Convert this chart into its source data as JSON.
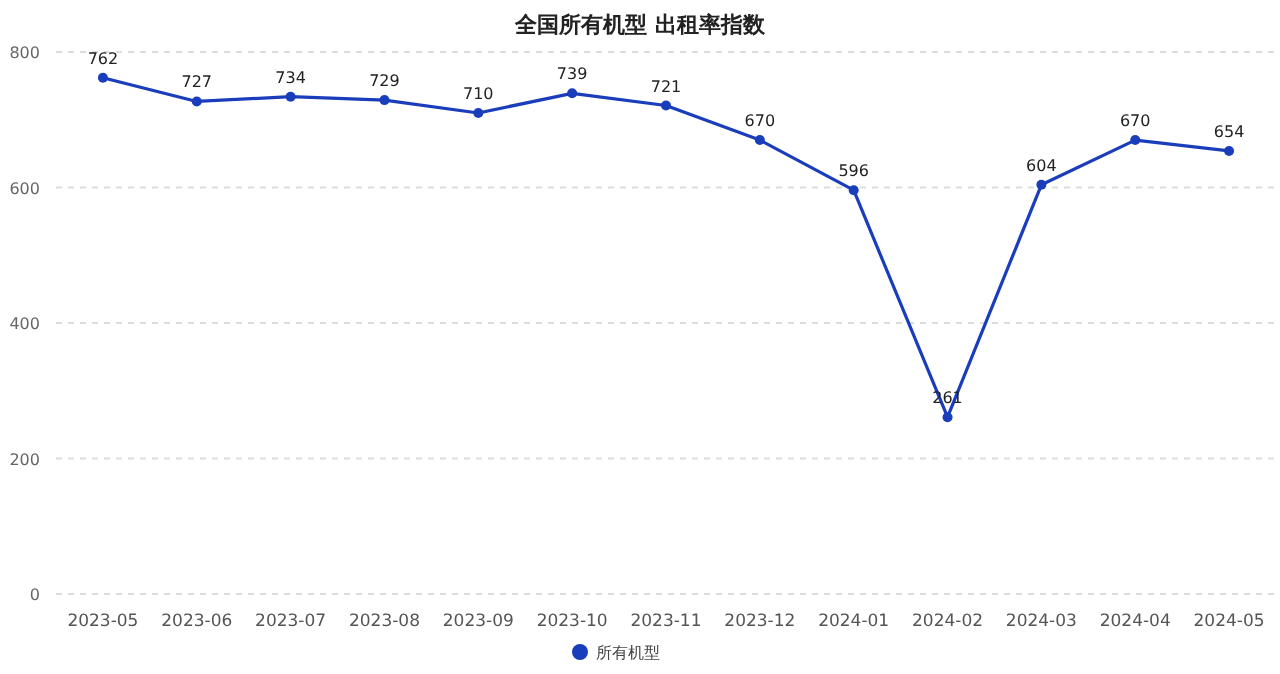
{
  "chart_data": {
    "type": "line",
    "title": "全国所有机型 出租率指数",
    "categories": [
      "2023-05",
      "2023-06",
      "2023-07",
      "2023-08",
      "2023-09",
      "2023-10",
      "2023-11",
      "2023-12",
      "2024-01",
      "2024-02",
      "2024-03",
      "2024-04",
      "2024-05"
    ],
    "series": [
      {
        "name": "所有机型",
        "color": "#1a3dbb",
        "values": [
          762,
          727,
          734,
          729,
          710,
          739,
          721,
          670,
          596,
          261,
          604,
          670,
          654
        ]
      }
    ],
    "ylim": [
      0,
      800
    ],
    "yticks": [
      0,
      200,
      400,
      600,
      800
    ],
    "grid": "y",
    "legend": "bottom",
    "marker": "circle",
    "data_labels": true
  }
}
